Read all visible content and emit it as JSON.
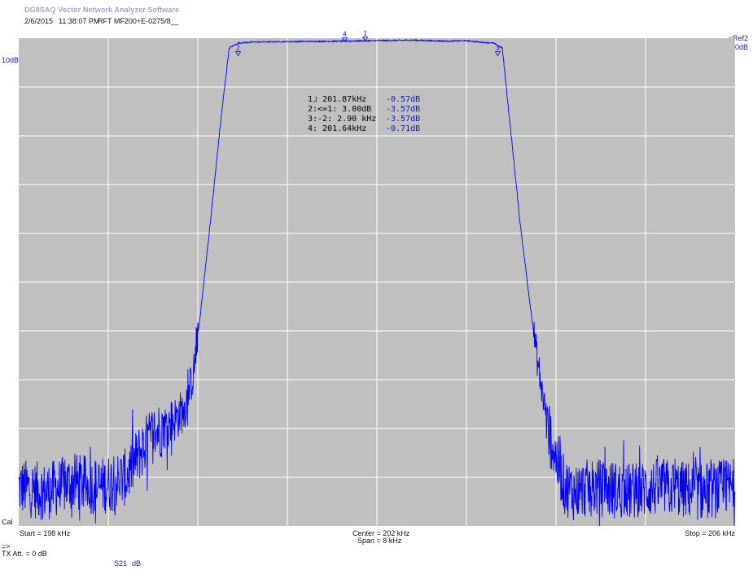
{
  "app": {
    "title": "DG8SAQ Vector Network Analyzer Software"
  },
  "header": {
    "date": "2/6/2015",
    "time": "11:38:07 PM",
    "device": "RFT MF200+E-0275/8__"
  },
  "left_labels": {
    "scale": "10dB/",
    "cal": "Cal"
  },
  "ref": {
    "label": "<Ref2",
    "value": "0dB"
  },
  "footer": {
    "start": "Start = 198 kHz",
    "center": "Center = 202 kHz",
    "span": "Span = 8 kHz",
    "stop": "Stop = 206 kHz",
    "arrow": "=>",
    "tx_att": "TX Att.  = 0 dB",
    "trace": "S21",
    "trace_unit": "dB"
  },
  "colors": {
    "plot_bg": "#c0c0c0",
    "grid": "#ffffff",
    "trace": "#0000ff",
    "marker_value": "#1a1aa8"
  },
  "chart_data": {
    "type": "line",
    "title": "",
    "xlabel": "",
    "ylabel": "",
    "xlim": [
      198,
      206
    ],
    "ylim": [
      -100,
      0
    ],
    "grid": true,
    "x_divisions": 8,
    "y_divisions": 10,
    "series": [
      {
        "x": [
          198.0,
          198.3,
          198.6,
          198.9,
          199.2,
          199.35,
          199.5,
          199.6,
          199.75,
          199.85,
          199.95,
          200.05,
          200.15,
          200.25,
          200.35,
          200.45,
          200.6,
          201.0,
          201.6,
          202.0,
          202.4,
          202.8,
          203.0,
          203.15,
          203.3,
          203.4,
          203.5,
          203.6,
          203.7,
          203.8,
          203.9,
          204.0,
          204.1,
          204.2,
          204.4,
          204.8,
          205.2,
          205.6,
          206.0
        ],
        "y": [
          -92,
          -93,
          -91,
          -92,
          -90,
          -85,
          -81,
          -80,
          -78,
          -76,
          -69,
          -53,
          -36,
          -18,
          -2,
          -1,
          -0.8,
          -0.7,
          -0.6,
          -0.5,
          -0.4,
          -0.6,
          -0.5,
          -0.8,
          -1,
          -2,
          -20,
          -38,
          -53,
          -67,
          -79,
          -86,
          -92,
          -93,
          -92,
          -93,
          -92,
          -93,
          -92
        ]
      }
    ],
    "markers": [
      {
        "id": "1",
        "label": "1˩  201.87kHz",
        "value": "-0.57dB"
      },
      {
        "id": "2",
        "label": "2:<=1:  3.00dB",
        "value": "-3.57dB"
      },
      {
        "id": "3",
        "label": "3:-2:  2.90 kHz",
        "value": "-3.57dB"
      },
      {
        "id": "4",
        "label": "4:  201.64kHz",
        "value": "-0.71dB"
      }
    ],
    "marker_positions": [
      {
        "id": "1",
        "x": 201.87,
        "y": -0.57
      },
      {
        "id": "4",
        "x": 201.64,
        "y": -0.71
      },
      {
        "id": "2",
        "x": 200.45,
        "y": -3.57
      },
      {
        "id": "3",
        "x": 203.35,
        "y": -3.57
      }
    ]
  }
}
